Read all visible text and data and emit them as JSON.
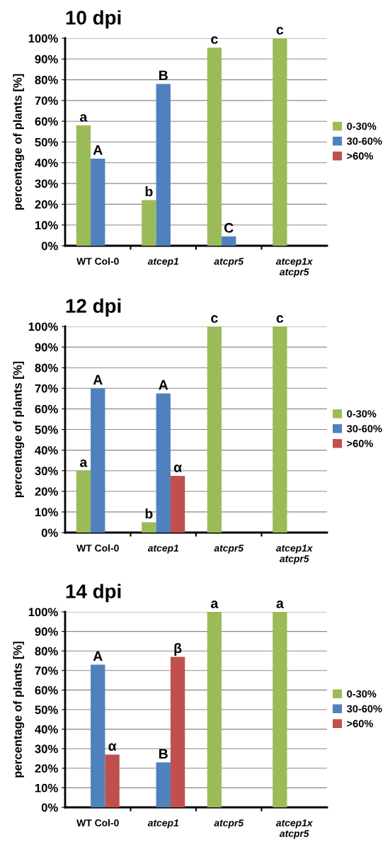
{
  "chart_data": [
    {
      "type": "bar",
      "title": "10 dpi",
      "ylabel": "percentage of plants [%]",
      "categories": [
        "WT Col-0",
        "atcep1",
        "atcpr5",
        "atcep1x\natcpr5"
      ],
      "series": [
        {
          "name": "0-30%",
          "color": "#9bbb59",
          "values": [
            58,
            22,
            95.5,
            100
          ],
          "value_labels": [
            "a",
            "b",
            "c",
            "c"
          ]
        },
        {
          "name": "30-60%",
          "color": "#4f81bd",
          "values": [
            42,
            78,
            4.5,
            0
          ],
          "value_labels": [
            "A",
            "B",
            "C",
            null
          ]
        },
        {
          "name": ">60%",
          "color": "#c0504d",
          "values": [
            0,
            0,
            0,
            0
          ]
        }
      ],
      "ylim": [
        0,
        100
      ],
      "yticks": [
        {
          "value": 0,
          "label": "0%"
        },
        {
          "value": 10,
          "label": "10%"
        },
        {
          "value": 20,
          "label": "20%"
        },
        {
          "value": 30,
          "label": "30%"
        },
        {
          "value": 40,
          "label": "40%"
        },
        {
          "value": 50,
          "label": "50%"
        },
        {
          "value": 60,
          "label": "60%"
        },
        {
          "value": 70,
          "label": "70%"
        },
        {
          "value": 80,
          "label": "80%"
        },
        {
          "value": 90,
          "label": "90%"
        },
        {
          "value": 100,
          "label": "100%"
        }
      ],
      "grid": "y",
      "legend": "right"
    },
    {
      "type": "bar",
      "title": "12 dpi",
      "ylabel": "percentage of plants [%]",
      "categories": [
        "WT Col-0",
        "atcep1",
        "atcpr5",
        "atcep1x\natcpr5"
      ],
      "series": [
        {
          "name": "0-30%",
          "color": "#9bbb59",
          "values": [
            30,
            5,
            100,
            100
          ],
          "value_labels": [
            "a",
            "b",
            "c",
            "c"
          ]
        },
        {
          "name": "30-60%",
          "color": "#4f81bd",
          "values": [
            70,
            67.5,
            0,
            0
          ],
          "value_labels": [
            "A",
            "A",
            null,
            null
          ]
        },
        {
          "name": ">60%",
          "color": "#c0504d",
          "values": [
            0,
            27.5,
            0,
            0
          ],
          "value_labels": [
            null,
            "α",
            null,
            null
          ]
        }
      ],
      "ylim": [
        0,
        100
      ],
      "yticks": [
        {
          "value": 0,
          "label": "0%"
        },
        {
          "value": 10,
          "label": "10%"
        },
        {
          "value": 20,
          "label": "20%"
        },
        {
          "value": 30,
          "label": "30%"
        },
        {
          "value": 40,
          "label": "40%"
        },
        {
          "value": 50,
          "label": "50%"
        },
        {
          "value": 60,
          "label": "60%"
        },
        {
          "value": 70,
          "label": "70%"
        },
        {
          "value": 80,
          "label": "80%"
        },
        {
          "value": 90,
          "label": "90%"
        },
        {
          "value": 100,
          "label": "100%"
        }
      ],
      "grid": "y",
      "legend": "right"
    },
    {
      "type": "bar",
      "title": "14 dpi",
      "ylabel": "percentage of plants [%]",
      "categories": [
        "WT Col-0",
        "atcep1",
        "atcpr5",
        "atcep1x\natcpr5"
      ],
      "series": [
        {
          "name": "0-30%",
          "color": "#9bbb59",
          "values": [
            0,
            0,
            100,
            100
          ],
          "value_labels": [
            null,
            null,
            "a",
            "a"
          ]
        },
        {
          "name": "30-60%",
          "color": "#4f81bd",
          "values": [
            73,
            23,
            0,
            0
          ],
          "value_labels": [
            "A",
            "B",
            null,
            null
          ]
        },
        {
          "name": ">60%",
          "color": "#c0504d",
          "values": [
            27,
            77,
            0,
            0
          ],
          "value_labels": [
            "α",
            "β",
            null,
            null
          ]
        }
      ],
      "ylim": [
        0,
        100
      ],
      "yticks": [
        {
          "value": 0,
          "label": "0%"
        },
        {
          "value": 10,
          "label": "10%"
        },
        {
          "value": 20,
          "label": "20%"
        },
        {
          "value": 30,
          "label": "30%"
        },
        {
          "value": 40,
          "label": "40%"
        },
        {
          "value": 50,
          "label": "50%"
        },
        {
          "value": 60,
          "label": "60%"
        },
        {
          "value": 70,
          "label": "70%"
        },
        {
          "value": 80,
          "label": "80%"
        },
        {
          "value": 90,
          "label": "90%"
        },
        {
          "value": 100,
          "label": "100%"
        }
      ],
      "grid": "y",
      "legend": "right"
    }
  ]
}
